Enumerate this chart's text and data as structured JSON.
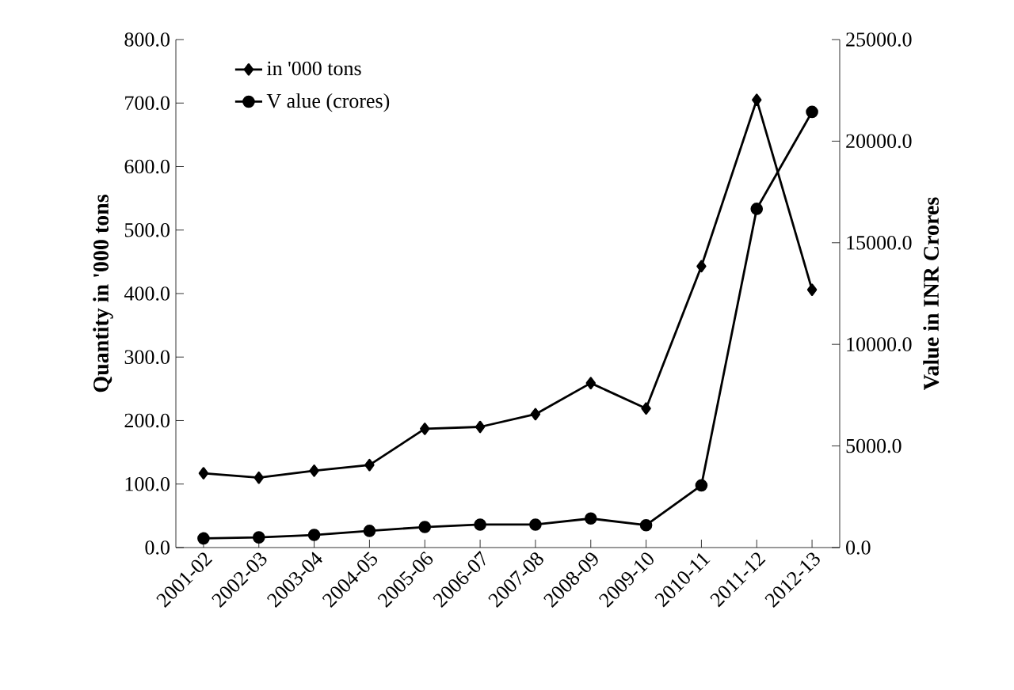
{
  "chart_data": {
    "type": "line",
    "ylabel": "Quantity  in '000 tons",
    "y2label": "Value in INR Crores",
    "categories": [
      "2001-02",
      "2002-03",
      "2003-04",
      "2004-05",
      "2005-06",
      "2006-07",
      "2007-08",
      "2008-09",
      "2009-10",
      "2010-11",
      "2011-12",
      "2012-13"
    ],
    "series": [
      {
        "name": "in '000 tons",
        "color": "#000000",
        "marker": "diamond",
        "values": [
          117,
          110,
          121,
          130,
          187,
          190,
          210,
          259,
          219,
          443,
          705,
          406
        ]
      },
      {
        "name": "V alue (crores)",
        "color": "#000000",
        "marker": "circle",
        "axis": "y2",
        "values": [
          450,
          500,
          620,
          820,
          1010,
          1130,
          1130,
          1430,
          1100,
          3060,
          16670,
          21440
        ]
      }
    ],
    "ylim": [
      0,
      800
    ],
    "yticks": [
      {
        "value": 0,
        "label": "0.0"
      },
      {
        "value": 100,
        "label": "100.0"
      },
      {
        "value": 200,
        "label": "200.0"
      },
      {
        "value": 300,
        "label": "300.0"
      },
      {
        "value": 400,
        "label": "400.0"
      },
      {
        "value": 500,
        "label": "500.0"
      },
      {
        "value": 600,
        "label": "600.0"
      },
      {
        "value": 700,
        "label": "700.0"
      },
      {
        "value": 800,
        "label": "800.0"
      }
    ],
    "y2lim": [
      0,
      25000
    ],
    "y2ticks": [
      {
        "value": 0,
        "label": "0.0"
      },
      {
        "value": 5000,
        "label": "5000.0"
      },
      {
        "value": 10000,
        "label": "10000.0"
      },
      {
        "value": 15000,
        "label": "15000.0"
      },
      {
        "value": 20000,
        "label": "20000.0"
      },
      {
        "value": 25000,
        "label": "25000.0"
      }
    ],
    "grid": false,
    "legend": "top left",
    "line_style": "solid"
  }
}
